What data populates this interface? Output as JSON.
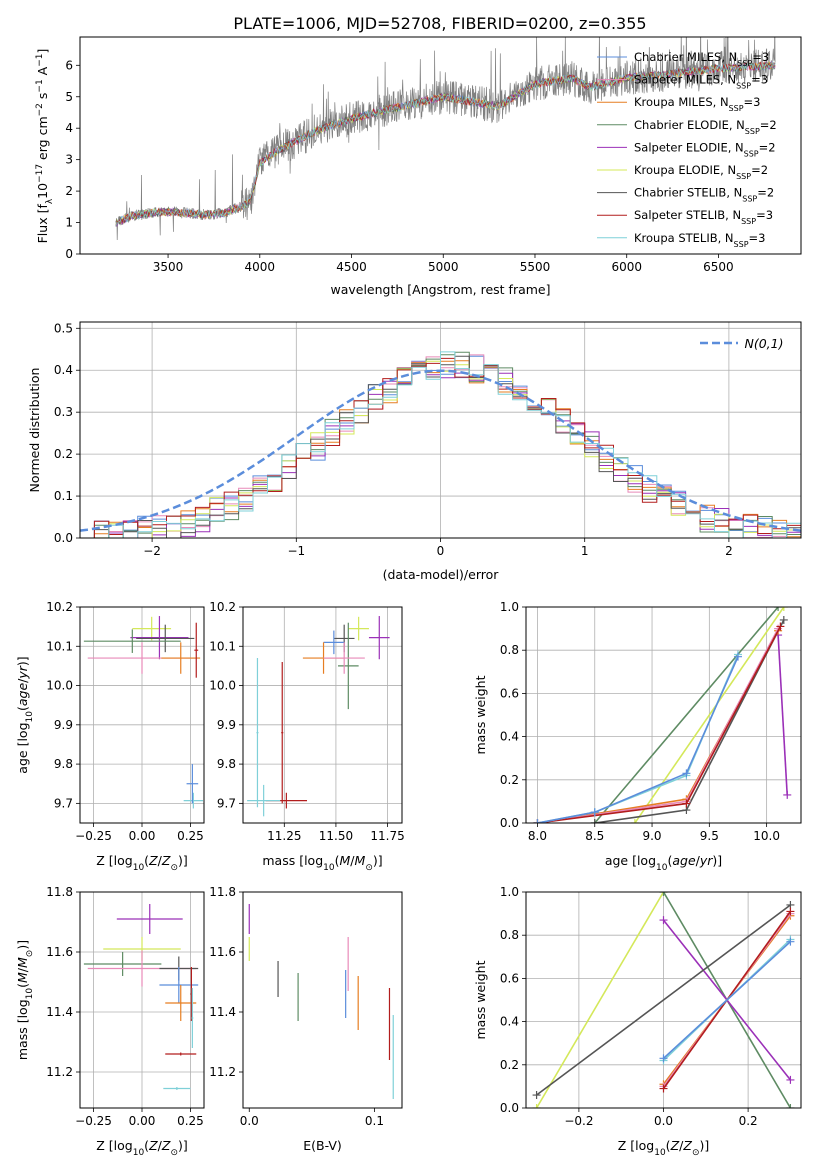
{
  "figure": {
    "title": "PLATE=1006, MJD=52708, FIBERID=0200, z=0.355",
    "colors": {
      "Chabrier MILES": "#5b8ddb",
      "Salpeter MILES": "#e88ab9",
      "Kroupa MILES": "#e67e22",
      "Chabrier ELODIE": "#5e8b63",
      "Salpeter ELODIE": "#9b30b8",
      "Kroupa ELODIE": "#d4e85a",
      "Chabrier STELIB": "#555555",
      "Salpeter STELIB": "#b21d1d",
      "Kroupa STELIB": "#7fd0d8",
      "data": "#7f7f7f",
      "normal": "#5b8ddb"
    }
  },
  "chart_data": [
    {
      "id": "spectrum",
      "type": "line",
      "xlabel": "wavelength [Angstrom, rest frame]",
      "ylabel": "Flux [f_λ10^-17 erg cm^-2 s^-1 A^-1]",
      "xlim": [
        3020,
        6950
      ],
      "ylim": [
        0,
        6.9
      ],
      "xticks": [
        3500,
        4000,
        4500,
        5000,
        5500,
        6000,
        6500
      ],
      "yticks": [
        0,
        1,
        2,
        3,
        4,
        5,
        6
      ],
      "grid": false,
      "legend_position": "top-right",
      "legend": [
        {
          "model": "Chabrier MILES",
          "nssp": "3"
        },
        {
          "model": "Salpeter MILES",
          "nssp": "3"
        },
        {
          "model": "Kroupa MILES",
          "nssp": "3"
        },
        {
          "model": "Chabrier ELODIE",
          "nssp": "2"
        },
        {
          "model": "Salpeter ELODIE",
          "nssp": "2"
        },
        {
          "model": "Kroupa ELODIE",
          "nssp": "2"
        },
        {
          "model": "Chabrier STELIB",
          "nssp": "2"
        },
        {
          "model": "Salpeter STELIB",
          "nssp": "3"
        },
        {
          "model": "Kroupa STELIB",
          "nssp": "3"
        }
      ],
      "continuum": {
        "x": [
          3215,
          3300,
          3400,
          3500,
          3600,
          3700,
          3800,
          3900,
          3950,
          4000,
          4100,
          4200,
          4300,
          4500,
          4700,
          4850,
          5000,
          5200,
          5300,
          5500,
          5700,
          5800,
          6000,
          6200,
          6500,
          6800
        ],
        "y": [
          1.0,
          1.2,
          1.3,
          1.35,
          1.3,
          1.25,
          1.3,
          1.5,
          1.7,
          2.9,
          3.3,
          3.6,
          3.9,
          4.3,
          4.6,
          4.8,
          5.0,
          4.8,
          4.7,
          5.4,
          5.6,
          5.3,
          5.6,
          5.7,
          5.9,
          6.0
        ]
      },
      "data_range": [
        3215,
        6810
      ]
    },
    {
      "id": "residuals",
      "type": "histogram",
      "xlabel": "(data-model)/error",
      "ylabel": "Normed distribution",
      "xlim": [
        -2.5,
        2.5
      ],
      "ylim": [
        0,
        0.515
      ],
      "xticks": [
        -2,
        -1,
        0,
        1,
        2
      ],
      "yticks": [
        0.0,
        0.1,
        0.2,
        0.3,
        0.4,
        0.5
      ],
      "grid": true,
      "legend_position": "top-right",
      "legend": [
        {
          "label": "N(0,1)"
        }
      ],
      "bin_width": 0.1,
      "bins_start": -2.5
    },
    {
      "id": "z-age",
      "type": "errorbar",
      "xlabel": "Z [log10(Z/Z⊙)]",
      "ylabel": "age [log10(age/yr)]",
      "xlim": [
        -0.32,
        0.32
      ],
      "ylim": [
        9.65,
        10.2
      ],
      "xticks": [
        -0.25,
        0.0,
        0.25
      ],
      "yticks": [
        9.7,
        9.8,
        9.9,
        10.0,
        10.1,
        10.2
      ],
      "grid": true,
      "points": [
        {
          "model": "Kroupa ELODIE",
          "x": 0.05,
          "xerr": 0.1,
          "y": 10.145,
          "yerr": 0.03
        },
        {
          "model": "Salpeter ELODIE",
          "x": 0.09,
          "xerr": 0.15,
          "y": 10.122,
          "yerr": 0.055
        },
        {
          "model": "Chabrier STELIB",
          "x": 0.12,
          "xerr": 0.15,
          "y": 10.12,
          "yerr": 0.035
        },
        {
          "model": "Chabrier ELODIE",
          "x": -0.05,
          "xerr": 0.25,
          "y": 10.113,
          "yerr": 0.03
        },
        {
          "model": "Salpeter MILES",
          "x": 0.0,
          "xerr": 0.28,
          "y": 10.07,
          "yerr": 0.04
        },
        {
          "model": "Kroupa MILES",
          "x": 0.2,
          "xerr": 0.1,
          "y": 10.07,
          "yerr": 0.04
        },
        {
          "model": "Salpeter STELIB",
          "x": 0.28,
          "xerr": 0.01,
          "y": 10.09,
          "yerr": 0.07
        },
        {
          "model": "Kroupa STELIB",
          "x": 0.265,
          "xerr": 0.05,
          "y": 9.707,
          "yerr": 0.02
        },
        {
          "model": "Chabrier MILES",
          "x": 0.26,
          "xerr": 0.03,
          "y": 9.75,
          "yerr": 0.05
        }
      ]
    },
    {
      "id": "mass-age",
      "type": "errorbar",
      "xlabel": "mass [log10(M/M⊙)]",
      "ylabel": "",
      "xlim": [
        11.05,
        11.82
      ],
      "ylim": [
        9.65,
        10.2
      ],
      "xticks": [
        11.25,
        11.5,
        11.75
      ],
      "yticks": [
        9.7,
        9.8,
        9.9,
        10.0,
        10.1,
        10.2
      ],
      "grid": true,
      "points": [
        {
          "model": "Kroupa ELODIE",
          "x": 11.61,
          "xerr": 0.05,
          "y": 10.145,
          "yerr": 0.03
        },
        {
          "model": "Salpeter ELODIE",
          "x": 11.71,
          "xerr": 0.05,
          "y": 10.122,
          "yerr": 0.055
        },
        {
          "model": "Chabrier STELIB",
          "x": 11.54,
          "xerr": 0.05,
          "y": 10.12,
          "yerr": 0.035
        },
        {
          "model": "Chabrier MILES",
          "x": 11.49,
          "xerr": 0.05,
          "y": 10.11,
          "yerr": 0.03
        },
        {
          "model": "Chabrier ELODIE",
          "x": 11.56,
          "xerr": 0.05,
          "y": 10.05,
          "yerr": 0.11
        },
        {
          "model": "Kroupa MILES",
          "x": 11.44,
          "xerr": 0.1,
          "y": 10.07,
          "yerr": 0.04
        },
        {
          "model": "Salpeter MILES",
          "x": 11.54,
          "xerr": 0.1,
          "y": 10.07,
          "yerr": 0.04
        },
        {
          "model": "Salpeter STELIB",
          "x": 11.26,
          "xerr": 0.1,
          "y": 9.707,
          "yerr": 0.02
        },
        {
          "model": "Kroupa STELIB",
          "x": 11.15,
          "xerr": 0.08,
          "y": 9.707,
          "yerr": 0.04
        },
        {
          "model": "Salpeter STELIB",
          "x": 11.24,
          "xerr": 0.005,
          "y": 9.88,
          "yerr": 0.18
        },
        {
          "model": "Kroupa STELIB",
          "x": 11.12,
          "xerr": 0.005,
          "y": 9.88,
          "yerr": 0.19
        }
      ]
    },
    {
      "id": "age-weight",
      "type": "line",
      "xlabel": "age [log10(age/yr)]",
      "ylabel": "mass weight",
      "xlim": [
        7.9,
        10.3
      ],
      "ylim": [
        0,
        1.0
      ],
      "xticks": [
        8.0,
        8.5,
        9.0,
        9.5,
        10.0
      ],
      "yticks": [
        0.0,
        0.2,
        0.4,
        0.6,
        0.8,
        1.0
      ],
      "grid": true,
      "series": [
        {
          "model": "Chabrier ELODIE",
          "x": [
            8.5,
            10.1
          ],
          "y": [
            0.0,
            1.0
          ]
        },
        {
          "model": "Kroupa ELODIE",
          "x": [
            8.85,
            10.15
          ],
          "y": [
            0.0,
            1.0
          ]
        },
        {
          "model": "Salpeter ELODIE",
          "x": [
            10.1,
            10.18
          ],
          "y": [
            0.87,
            0.13
          ]
        },
        {
          "model": "Chabrier STELIB",
          "x": [
            8.5,
            9.3,
            10.15
          ],
          "y": [
            0.0,
            0.06,
            0.94
          ]
        },
        {
          "model": "Kroupa MILES",
          "x": [
            8.0,
            9.3,
            10.1
          ],
          "y": [
            0.0,
            0.11,
            0.89
          ]
        },
        {
          "model": "Salpeter MILES",
          "x": [
            8.0,
            9.3,
            10.1
          ],
          "y": [
            0.0,
            0.1,
            0.9
          ]
        },
        {
          "model": "Salpeter STELIB",
          "x": [
            8.0,
            9.3,
            10.12
          ],
          "y": [
            0.0,
            0.09,
            0.91
          ]
        },
        {
          "model": "Kroupa STELIB",
          "x": [
            8.0,
            8.5,
            9.3,
            9.75
          ],
          "y": [
            0.0,
            0.05,
            0.22,
            0.78
          ]
        },
        {
          "model": "Chabrier MILES",
          "x": [
            8.0,
            8.5,
            9.3,
            9.75
          ],
          "y": [
            0.0,
            0.05,
            0.23,
            0.77
          ]
        }
      ]
    },
    {
      "id": "z-mass",
      "type": "errorbar",
      "xlabel": "Z [log10(Z/Z⊙)]",
      "ylabel": "mass [log10(M/M⊙)]",
      "xlim": [
        -0.32,
        0.32
      ],
      "ylim": [
        11.08,
        11.8
      ],
      "xticks": [
        -0.25,
        0.0,
        0.25
      ],
      "yticks": [
        11.2,
        11.4,
        11.6,
        11.8
      ],
      "grid": true,
      "points": [
        {
          "model": "Salpeter ELODIE",
          "x": 0.04,
          "xerr": 0.17,
          "y": 11.71,
          "yerr": 0.05
        },
        {
          "model": "Kroupa ELODIE",
          "x": 0.0,
          "xerr": 0.2,
          "y": 11.61,
          "yerr": 0.04
        },
        {
          "model": "Chabrier ELODIE",
          "x": -0.1,
          "xerr": 0.2,
          "y": 11.56,
          "yerr": 0.04
        },
        {
          "model": "Salpeter MILES",
          "x": 0.0,
          "xerr": 0.28,
          "y": 11.545,
          "yerr": 0.06
        },
        {
          "model": "Chabrier STELIB",
          "x": 0.19,
          "xerr": 0.1,
          "y": 11.545,
          "yerr": 0.04
        },
        {
          "model": "Chabrier MILES",
          "x": 0.19,
          "xerr": 0.1,
          "y": 11.49,
          "yerr": 0.06
        },
        {
          "model": "Kroupa MILES",
          "x": 0.2,
          "xerr": 0.08,
          "y": 11.43,
          "yerr": 0.06
        },
        {
          "model": "Salpeter STELIB",
          "x": 0.2,
          "xerr": 0.08,
          "y": 11.26,
          "yerr": 0.005
        },
        {
          "model": "Salpeter STELIB",
          "x": 0.255,
          "xerr": 0.005,
          "y": 11.46,
          "yerr": 0.09
        },
        {
          "model": "Kroupa STELIB",
          "x": 0.18,
          "xerr": 0.07,
          "y": 11.145,
          "yerr": 0.005
        },
        {
          "model": "Kroupa STELIB",
          "x": 0.26,
          "xerr": 0.005,
          "y": 11.38,
          "yerr": 0.1
        }
      ]
    },
    {
      "id": "ebv-mass",
      "type": "errorbar",
      "xlabel": "E(B-V)",
      "ylabel": "",
      "xlim": [
        -0.005,
        0.122
      ],
      "ylim": [
        11.08,
        11.8
      ],
      "xticks": [
        0.0,
        0.1
      ],
      "yticks": [
        11.2,
        11.4,
        11.6,
        11.8
      ],
      "grid": false,
      "points": [
        {
          "model": "Salpeter ELODIE",
          "x": 0.0,
          "xerr": 0.0,
          "y": 11.71,
          "yerr": 0.05
        },
        {
          "model": "Kroupa ELODIE",
          "x": 0.0,
          "xerr": 0.0,
          "y": 11.61,
          "yerr": 0.04
        },
        {
          "model": "Chabrier STELIB",
          "x": 0.023,
          "xerr": 0.0,
          "y": 11.51,
          "yerr": 0.06
        },
        {
          "model": "Chabrier ELODIE",
          "x": 0.039,
          "xerr": 0.0,
          "y": 11.45,
          "yerr": 0.08
        },
        {
          "model": "Chabrier MILES",
          "x": 0.077,
          "xerr": 0.0,
          "y": 11.46,
          "yerr": 0.08
        },
        {
          "model": "Salpeter MILES",
          "x": 0.079,
          "xerr": 0.0,
          "y": 11.56,
          "yerr": 0.09
        },
        {
          "model": "Kroupa MILES",
          "x": 0.087,
          "xerr": 0.0,
          "y": 11.43,
          "yerr": 0.09
        },
        {
          "model": "Salpeter STELIB",
          "x": 0.112,
          "xerr": 0.0,
          "y": 11.36,
          "yerr": 0.12
        },
        {
          "model": "Kroupa STELIB",
          "x": 0.115,
          "xerr": 0.0,
          "y": 11.25,
          "yerr": 0.14
        }
      ]
    },
    {
      "id": "z-weight",
      "type": "line",
      "xlabel": "Z [log10(Z/Z⊙)]",
      "ylabel": "mass weight",
      "xlim": [
        -0.325,
        0.325
      ],
      "ylim": [
        0,
        1.0
      ],
      "xticks": [
        -0.2,
        0.0,
        0.2
      ],
      "yticks": [
        0.0,
        0.2,
        0.4,
        0.6,
        0.8,
        1.0
      ],
      "grid": true,
      "series": [
        {
          "model": "Kroupa ELODIE",
          "x": [
            -0.3,
            0.0
          ],
          "y": [
            0.0,
            1.0
          ]
        },
        {
          "model": "Chabrier ELODIE",
          "x": [
            0.0,
            0.3
          ],
          "y": [
            1.0,
            0.0
          ]
        },
        {
          "model": "Salpeter ELODIE",
          "x": [
            0.0,
            0.3
          ],
          "y": [
            0.87,
            0.13
          ]
        },
        {
          "model": "Chabrier STELIB",
          "x": [
            -0.3,
            0.3
          ],
          "y": [
            0.06,
            0.94
          ]
        },
        {
          "model": "Kroupa MILES",
          "x": [
            0.0,
            0.3
          ],
          "y": [
            0.11,
            0.89
          ]
        },
        {
          "model": "Salpeter MILES",
          "x": [
            0.0,
            0.3
          ],
          "y": [
            0.1,
            0.9
          ]
        },
        {
          "model": "Salpeter STELIB",
          "x": [
            0.0,
            0.3
          ],
          "y": [
            0.09,
            0.91
          ]
        },
        {
          "model": "Kroupa STELIB",
          "x": [
            0.0,
            0.3
          ],
          "y": [
            0.22,
            0.78
          ]
        },
        {
          "model": "Chabrier MILES",
          "x": [
            0.0,
            0.3
          ],
          "y": [
            0.23,
            0.77
          ]
        }
      ]
    }
  ]
}
